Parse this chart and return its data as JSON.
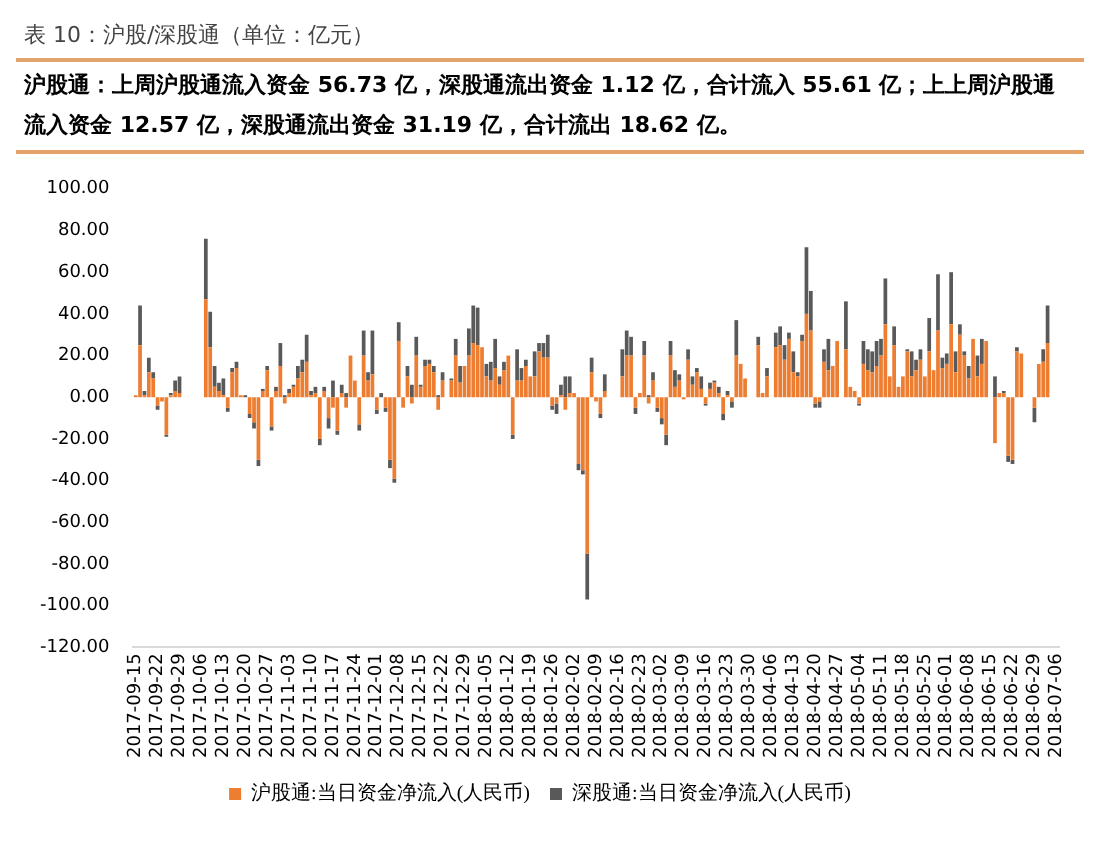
{
  "chart_data": {
    "type": "bar",
    "title": "表 10：沪股/深股通（单位：亿元）",
    "subtitle": "沪股通：上周沪股通流入资金 56.73 亿，深股通流出资金 1.12 亿，合计流入 55.61 亿；上上周沪股通流入资金 12.57 亿，深股通流出资金 31.19 亿，合计流出 18.62 亿。",
    "categories": [
      "2017-09-15",
      null,
      null,
      null,
      null,
      "2017-09-22",
      null,
      null,
      null,
      null,
      "2017-09-29",
      null,
      null,
      null,
      null,
      "2017-10-06",
      null,
      null,
      null,
      null,
      "2017-10-13",
      null,
      null,
      null,
      null,
      "2017-10-20",
      null,
      null,
      null,
      null,
      "2017-10-27",
      null,
      null,
      null,
      null,
      "2017-11-03",
      null,
      null,
      null,
      null,
      "2017-11-10",
      null,
      null,
      null,
      null,
      "2017-11-17",
      null,
      null,
      null,
      null,
      "2017-11-24",
      null,
      null,
      null,
      null,
      "2017-12-01",
      null,
      null,
      null,
      null,
      "2017-12-08",
      null,
      null,
      null,
      null,
      "2017-12-15",
      null,
      null,
      null,
      null,
      "2017-12-22",
      null,
      null,
      null,
      null,
      "2017-12-29",
      null,
      null,
      null,
      null,
      "2018-01-05",
      null,
      null,
      null,
      null,
      "2018-01-12",
      null,
      null,
      null,
      null,
      "2018-01-19",
      null,
      null,
      null,
      null,
      "2018-01-26",
      null,
      null,
      null,
      null,
      "2018-02-02",
      null,
      null,
      null,
      null,
      "2018-02-09",
      null,
      null,
      null,
      null,
      "2018-02-16",
      null,
      null,
      null,
      null,
      "2018-02-23",
      null,
      null,
      null,
      null,
      "2018-03-02",
      null,
      null,
      null,
      null,
      "2018-03-09",
      null,
      null,
      null,
      null,
      "2018-03-16",
      null,
      null,
      null,
      null,
      "2018-03-23",
      null,
      null,
      null,
      null,
      "2018-03-30",
      null,
      null,
      null,
      null,
      "2018-04-06",
      null,
      null,
      null,
      null,
      "2018-04-13",
      null,
      null,
      null,
      null,
      "2018-04-20",
      null,
      null,
      null,
      null,
      "2018-04-27",
      null,
      null,
      null,
      null,
      "2018-05-04",
      null,
      null,
      null,
      null,
      "2018-05-11",
      null,
      null,
      null,
      null,
      "2018-05-18",
      null,
      null,
      null,
      null,
      "2018-05-25",
      null,
      null,
      null,
      null,
      "2018-06-01",
      null,
      null,
      null,
      null,
      "2018-06-08",
      null,
      null,
      null,
      null,
      "2018-06-15",
      null,
      null,
      null,
      null,
      "2018-06-22",
      null,
      null,
      null,
      null,
      "2018-06-29",
      null,
      null,
      null,
      null,
      "2018-07-06"
    ],
    "series": [
      {
        "name": "沪股通:当日资金净流入(人民币)",
        "color": "#ed7d31",
        "values": [
          1,
          25,
          1,
          12,
          9,
          -4,
          -2,
          -18,
          1,
          3,
          2,
          null,
          null,
          null,
          null,
          null,
          47,
          24,
          5,
          3,
          1,
          -5,
          12,
          14,
          1,
          0,
          -8,
          -12,
          -30,
          3,
          13,
          -14,
          3,
          15,
          -3,
          2,
          5,
          9,
          12,
          17,
          1,
          2,
          -20,
          3,
          -10,
          -5,
          -16,
          2,
          -5,
          20,
          8,
          -13,
          20,
          8,
          11,
          -6,
          0,
          -5,
          -30,
          -39,
          27,
          -5,
          10,
          -3,
          20,
          5,
          15,
          16,
          12,
          -6,
          8,
          0,
          8,
          20,
          7,
          15,
          20,
          26,
          25,
          24,
          10,
          8,
          14,
          6,
          13,
          20,
          -18,
          8,
          8,
          15,
          10,
          10,
          22,
          19,
          19,
          -4,
          -3,
          1,
          -6,
          2,
          2,
          -32,
          -35,
          -75,
          12,
          -2,
          -8,
          3,
          null,
          null,
          null,
          10,
          20,
          20,
          -5,
          2,
          20,
          -3,
          8,
          -5,
          -10,
          -18,
          20,
          5,
          8,
          -1,
          18,
          6,
          12,
          4,
          -3,
          4,
          7,
          2,
          -8,
          1,
          -2,
          20,
          16,
          9,
          0,
          0,
          25,
          2,
          10,
          0,
          24,
          25,
          18,
          28,
          12,
          10,
          27,
          40,
          32,
          -3,
          -2,
          17,
          13,
          15,
          27,
          0,
          23,
          5,
          3,
          -3,
          16,
          13,
          12,
          15,
          20,
          35,
          10,
          25,
          5,
          10,
          22,
          10,
          13,
          18,
          10,
          22,
          13,
          32,
          14,
          16,
          35,
          12,
          30,
          20,
          9,
          28,
          10,
          16,
          27,
          0,
          -22,
          2,
          2,
          -28,
          -30,
          22,
          21,
          0,
          0,
          -5,
          16,
          17,
          26,
          0,
          0
        ]
      },
      {
        "name": "深股通:当日资金净流入(人民币)",
        "color": "#595959",
        "values": [
          0,
          19,
          2,
          7,
          3,
          -2,
          0,
          -1,
          1,
          5,
          8,
          null,
          null,
          null,
          null,
          null,
          29,
          17,
          10,
          4,
          8,
          -2,
          2,
          3,
          0,
          1,
          -2,
          -3,
          -3,
          1,
          2,
          -2,
          2,
          11,
          1,
          2,
          1,
          6,
          6,
          13,
          2,
          3,
          -3,
          2,
          -5,
          8,
          -2,
          4,
          2,
          0,
          0,
          -3,
          12,
          4,
          21,
          -2,
          2,
          -2,
          -4,
          -2,
          9,
          0,
          5,
          6,
          9,
          1,
          3,
          2,
          3,
          1,
          4,
          0,
          1,
          8,
          8,
          0,
          13,
          18,
          18,
          0,
          6,
          9,
          14,
          4,
          4,
          0,
          -2,
          15,
          6,
          3,
          0,
          12,
          4,
          7,
          11,
          -2,
          -5,
          5,
          10,
          8,
          0,
          -3,
          -2,
          -22,
          7,
          0,
          -2,
          8,
          null,
          null,
          null,
          13,
          12,
          9,
          -3,
          0,
          7,
          1,
          4,
          -2,
          -3,
          -5,
          7,
          8,
          3,
          0,
          5,
          4,
          2,
          6,
          -1,
          3,
          1,
          3,
          -3,
          2,
          -3,
          17,
          0,
          0,
          0,
          0,
          4,
          0,
          4,
          0,
          7,
          9,
          7,
          3,
          10,
          2,
          3,
          32,
          19,
          -2,
          -3,
          6,
          15,
          0,
          0,
          0,
          23,
          0,
          0,
          -1,
          11,
          10,
          10,
          12,
          8,
          22,
          0,
          9,
          0,
          0,
          1,
          12,
          5,
          5,
          0,
          16,
          0,
          27,
          5,
          5,
          25,
          10,
          5,
          2,
          6,
          0,
          10,
          12,
          0,
          0,
          10,
          0,
          1,
          -3,
          -2,
          2,
          0,
          0,
          0,
          -7,
          0,
          6,
          18,
          0,
          0
        ]
      }
    ],
    "stacked": true,
    "ylim": [
      -120,
      100
    ],
    "yticks": [
      {
        "value": -120,
        "label": "-120.00"
      },
      {
        "value": -100,
        "label": "-100.00"
      },
      {
        "value": -80,
        "label": "-80.00"
      },
      {
        "value": -60,
        "label": "-60.00"
      },
      {
        "value": -40,
        "label": "-40.00"
      },
      {
        "value": -20,
        "label": "-20.00"
      },
      {
        "value": 0,
        "label": "0.00"
      },
      {
        "value": 20,
        "label": "20.00"
      },
      {
        "value": 40,
        "label": "40.00"
      },
      {
        "value": 60,
        "label": "60.00"
      },
      {
        "value": 80,
        "label": "80.00"
      },
      {
        "value": 100,
        "label": "100.00"
      }
    ],
    "legend": "bottom"
  }
}
